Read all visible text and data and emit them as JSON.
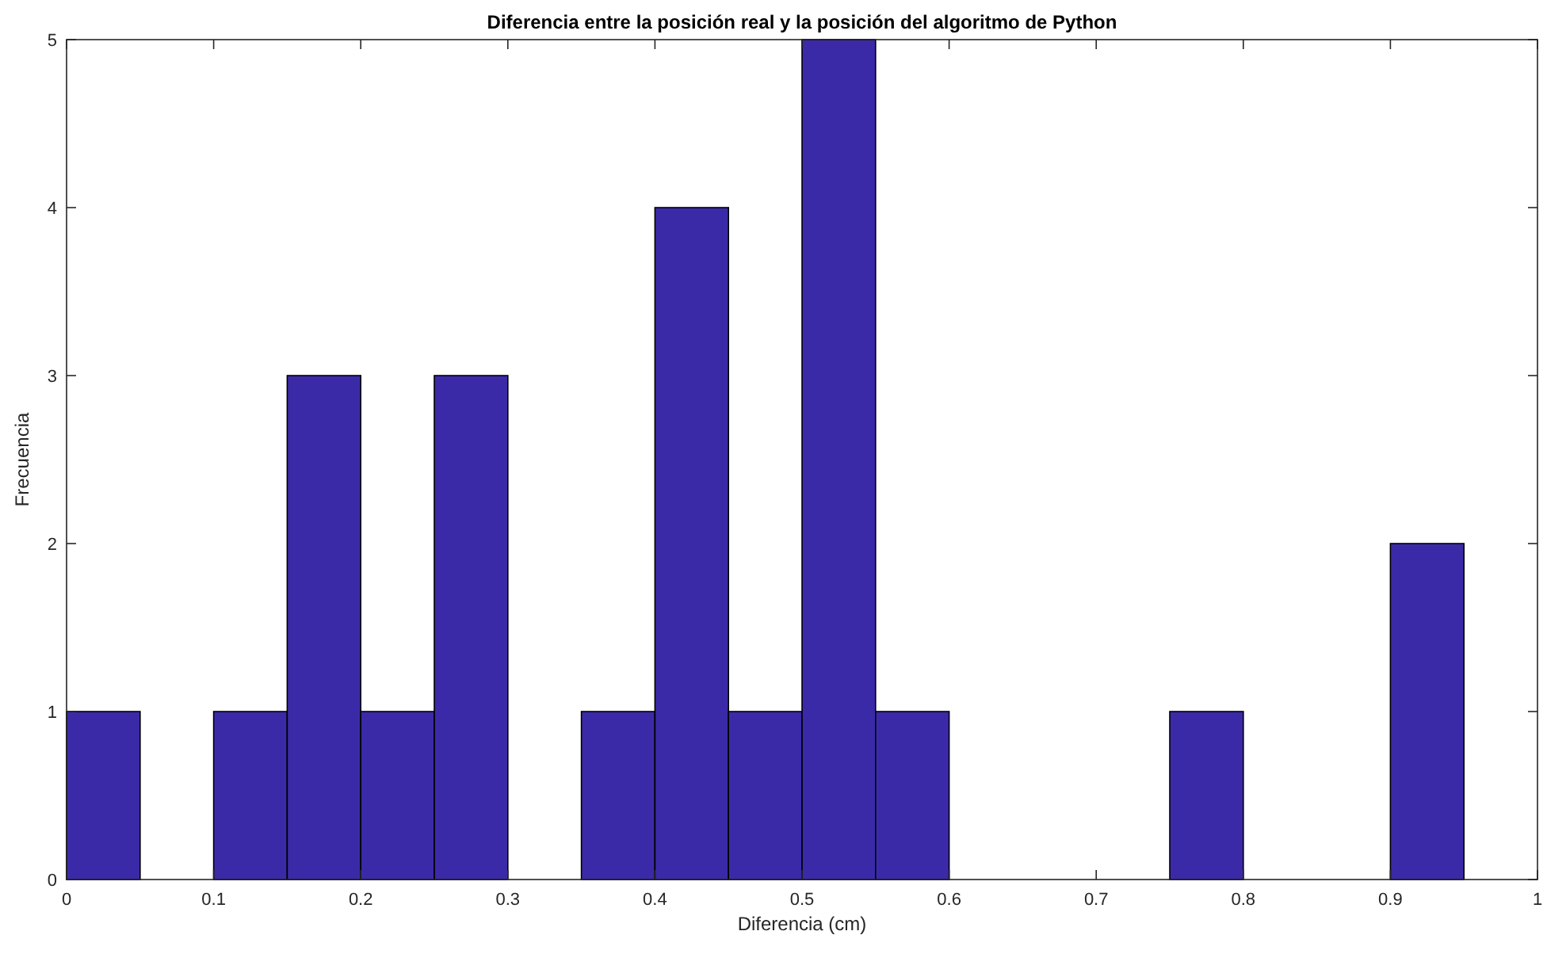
{
  "chart_data": {
    "type": "histogram",
    "title": "Diferencia entre la posición real y la posición del algoritmo de Python",
    "xlabel": "Diferencia (cm)",
    "ylabel": "Frecuencia",
    "bins": [
      0,
      0.05,
      0.1,
      0.15,
      0.2,
      0.25,
      0.3,
      0.35,
      0.4,
      0.45,
      0.5,
      0.55,
      0.6,
      0.65,
      0.7,
      0.75,
      0.8,
      0.85,
      0.9,
      0.95,
      1
    ],
    "values": [
      1,
      0,
      1,
      3,
      1,
      3,
      0,
      1,
      4,
      1,
      5,
      1,
      0,
      0,
      0,
      1,
      0,
      0,
      2,
      0
    ],
    "color": "#3b2aa8",
    "xlim": [
      0,
      1
    ],
    "xticks": [
      0,
      0.1,
      0.2,
      0.3,
      0.4,
      0.5,
      0.6,
      0.7,
      0.8,
      0.9,
      1
    ],
    "ylim": [
      0,
      5
    ],
    "yticks": [
      0,
      1,
      2,
      3,
      4,
      5
    ],
    "grid": false
  }
}
